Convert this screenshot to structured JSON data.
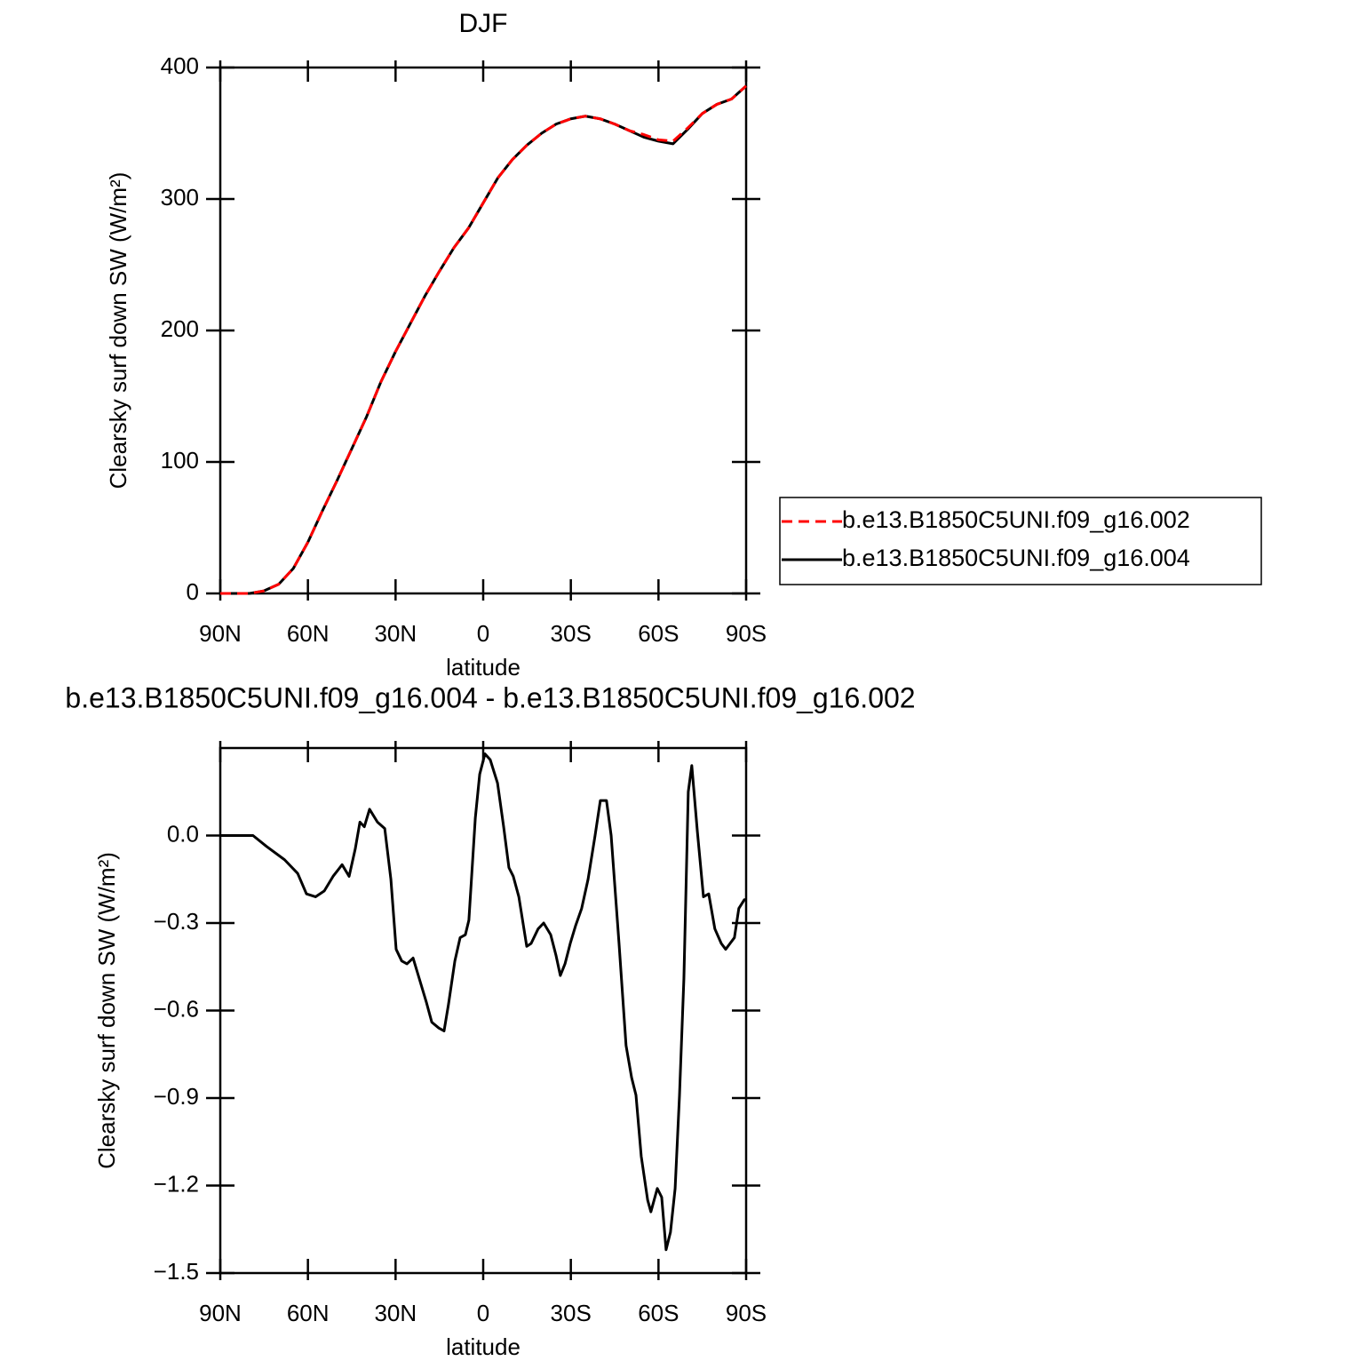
{
  "chart_data": [
    {
      "type": "line",
      "title": "DJF",
      "xlabel": "latitude",
      "ylabel": "Clearsky surf down SW (W/m²)",
      "x": [
        90,
        85,
        80,
        75,
        70,
        65,
        60,
        55,
        50,
        45,
        40,
        35,
        30,
        25,
        20,
        15,
        10,
        5,
        0,
        -5,
        -10,
        -15,
        -20,
        -25,
        -30,
        -35,
        -40,
        -45,
        -50,
        -55,
        -60,
        -65,
        -70,
        -75,
        -80,
        -85,
        -90
      ],
      "series": [
        {
          "name": "b.e13.B1850C5UNI.f09_g16.002",
          "color": "#ff0000",
          "linestyle": "dashed",
          "values": [
            0,
            0,
            0,
            2,
            7,
            19,
            39,
            63,
            86,
            110,
            134,
            161,
            184,
            205,
            226,
            245,
            263,
            278,
            297,
            316,
            330,
            341,
            350,
            357,
            361,
            363,
            361,
            357,
            352,
            349,
            345,
            344,
            354,
            365,
            372,
            376,
            386
          ]
        },
        {
          "name": "b.e13.B1850C5UNI.f09_g16.004",
          "color": "#000000",
          "linestyle": "solid",
          "values": [
            0,
            0,
            0,
            2,
            7,
            19,
            39,
            63,
            86,
            110,
            134,
            161,
            184,
            205,
            226,
            245,
            263,
            278,
            297,
            316,
            330,
            341,
            350,
            357,
            361,
            363,
            361,
            357,
            352,
            347,
            344,
            342,
            353,
            365,
            372,
            376,
            386
          ]
        }
      ],
      "xlim": [
        90,
        -90
      ],
      "xticks": [
        {
          "value": 90,
          "label": "90N"
        },
        {
          "value": 60,
          "label": "60N"
        },
        {
          "value": 30,
          "label": "30N"
        },
        0,
        {
          "value": -30,
          "label": "30S"
        },
        {
          "value": -60,
          "label": "60S"
        },
        {
          "value": -90,
          "label": "90S"
        }
      ],
      "ylim": [
        0,
        400
      ],
      "yticks": [
        0,
        100,
        200,
        300,
        400
      ],
      "legend": "right"
    },
    {
      "type": "line",
      "title": "b.e13.B1850C5UNI.f09_g16.004 - b.e13.B1850C5UNI.f09_g16.002",
      "xlabel": "latitude",
      "ylabel": "Clearsky surf down SW (W/m²)",
      "x": [
        90,
        78.8,
        74.2,
        68,
        63.5,
        60.5,
        57.4,
        54.4,
        51.4,
        48.3,
        45.9,
        43.8,
        42.2,
        40.7,
        38.9,
        36.2,
        33.7,
        31.6,
        29.8,
        27.9,
        26.1,
        24,
        21.9,
        19.5,
        17.6,
        15.2,
        13.4,
        11.9,
        9.7,
        7.9,
        6.1,
        4.9,
        2.7,
        1.2,
        -0.6,
        -2.4,
        -4.9,
        -7,
        -8.8,
        -10.3,
        -12.2,
        -14.9,
        -16.4,
        -18.8,
        -20.7,
        -23.1,
        -24.9,
        -26.4,
        -28,
        -29.8,
        -31.6,
        -33.7,
        -35.9,
        -38.3,
        -40.1,
        -42.2,
        -43.8,
        -46.5,
        -48.9,
        -50.8,
        -52.3,
        -54.1,
        -56.3,
        -57.4,
        -59.6,
        -61.1,
        -62.6,
        -64.1,
        -65.7,
        -67.2,
        -68.7,
        -70.2,
        -71.4,
        -73.3,
        -75.4,
        -77.2,
        -79.3,
        -81.5,
        -83,
        -84.5,
        -86,
        -87.5,
        -89.4,
        -90
      ],
      "values": [
        0,
        0,
        -0.037,
        -0.083,
        -0.13,
        -0.2,
        -0.21,
        -0.19,
        -0.14,
        -0.1,
        -0.14,
        -0.046,
        0.046,
        0.03,
        0.09,
        0.046,
        0.024,
        -0.15,
        -0.39,
        -0.43,
        -0.44,
        -0.42,
        -0.49,
        -0.57,
        -0.64,
        -0.66,
        -0.67,
        -0.58,
        -0.43,
        -0.35,
        -0.34,
        -0.29,
        0.06,
        0.21,
        0.28,
        0.26,
        0.18,
        0.03,
        -0.11,
        -0.14,
        -0.21,
        -0.38,
        -0.37,
        -0.32,
        -0.3,
        -0.34,
        -0.41,
        -0.48,
        -0.44,
        -0.37,
        -0.31,
        -0.25,
        -0.15,
        0,
        0.12,
        0.12,
        0,
        -0.37,
        -0.72,
        -0.83,
        -0.89,
        -1.1,
        -1.25,
        -1.29,
        -1.21,
        -1.24,
        -1.42,
        -1.36,
        -1.21,
        -0.89,
        -0.49,
        0.15,
        0.24,
        0.015,
        -0.21,
        -0.2,
        -0.32,
        -0.37,
        -0.39,
        -0.37,
        -0.35,
        -0.25,
        -0.22,
        -0.22
      ],
      "color": "#000000",
      "xlim": [
        90,
        -90
      ],
      "xticks": [
        {
          "value": 90,
          "label": "90N"
        },
        {
          "value": 60,
          "label": "60N"
        },
        {
          "value": 30,
          "label": "30N"
        },
        0,
        {
          "value": -30,
          "label": "30S"
        },
        {
          "value": -60,
          "label": "60S"
        },
        {
          "value": -90,
          "label": "90S"
        }
      ],
      "ylim": [
        -1.5,
        0.3
      ],
      "yticks": [
        {
          "value": -1.5,
          "label": "−1.5"
        },
        {
          "value": -1.2,
          "label": "−1.2"
        },
        {
          "value": -0.9,
          "label": "−0.9"
        },
        {
          "value": -0.6,
          "label": "−0.6"
        },
        {
          "value": -0.3,
          "label": "−0.3"
        },
        {
          "value": 0,
          "label": "0.0"
        }
      ]
    }
  ]
}
